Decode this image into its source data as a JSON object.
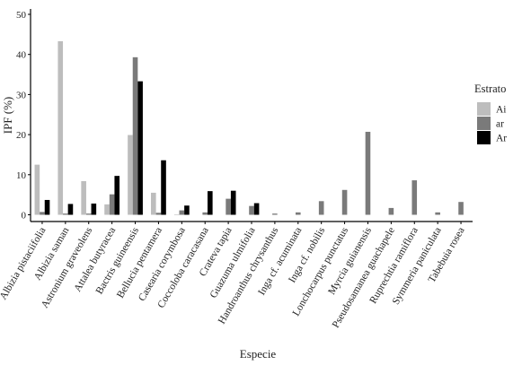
{
  "chart_data": {
    "type": "bar",
    "xlabel": "Especie",
    "ylabel": "IPF (%)",
    "ylim": [
      0,
      50
    ],
    "yticks": [
      0,
      10,
      20,
      30,
      40,
      50
    ],
    "grid": false,
    "legend": {
      "title": "Estrato",
      "placement": "right"
    },
    "categories": [
      "Albizia pistaciifolia",
      "Albizia saman",
      "Astronium graveolens",
      "Attalea butyracea",
      "Bactris guineensis",
      "Bellucia pentamera",
      "Casearia corymbosa",
      "Coccoloba caracasana",
      "Crateva tapia",
      "Guazuma ulmifolia",
      "Handroanthus chrysanthus",
      "Inga cf. acuminata",
      "Inga cf. nobilis",
      "Lonchocarpus punctatus",
      "Myrcia guianensis",
      "Pseudosamanea guachapele",
      "Ruprechtia ramiflora",
      "Symmeria paniculata",
      "Tabebuia rosea"
    ],
    "series": [
      {
        "name": "Ai",
        "color": "#bdbdbd",
        "values": [
          12.5,
          43.3,
          8.4,
          2.6,
          19.9,
          5.5,
          0.1,
          0.0,
          0.0,
          0.0,
          0.0,
          0.0,
          0.0,
          0.0,
          0.0,
          0.0,
          0.0,
          0.0,
          0.0
        ]
      },
      {
        "name": "ar",
        "color": "#7a7a7a",
        "values": [
          0.7,
          0.3,
          0.3,
          5.1,
          39.3,
          0.5,
          1.1,
          0.6,
          4.0,
          2.2,
          0.3,
          0.6,
          3.4,
          6.2,
          20.7,
          1.7,
          8.6,
          0.6,
          3.2
        ]
      },
      {
        "name": "Ar",
        "color": "#000000",
        "values": [
          3.7,
          2.7,
          2.8,
          9.7,
          33.3,
          13.6,
          2.3,
          5.9,
          6.0,
          2.9,
          0.0,
          0.0,
          0.0,
          0.0,
          0.0,
          0.0,
          0.0,
          0.0,
          0.0
        ]
      }
    ]
  }
}
